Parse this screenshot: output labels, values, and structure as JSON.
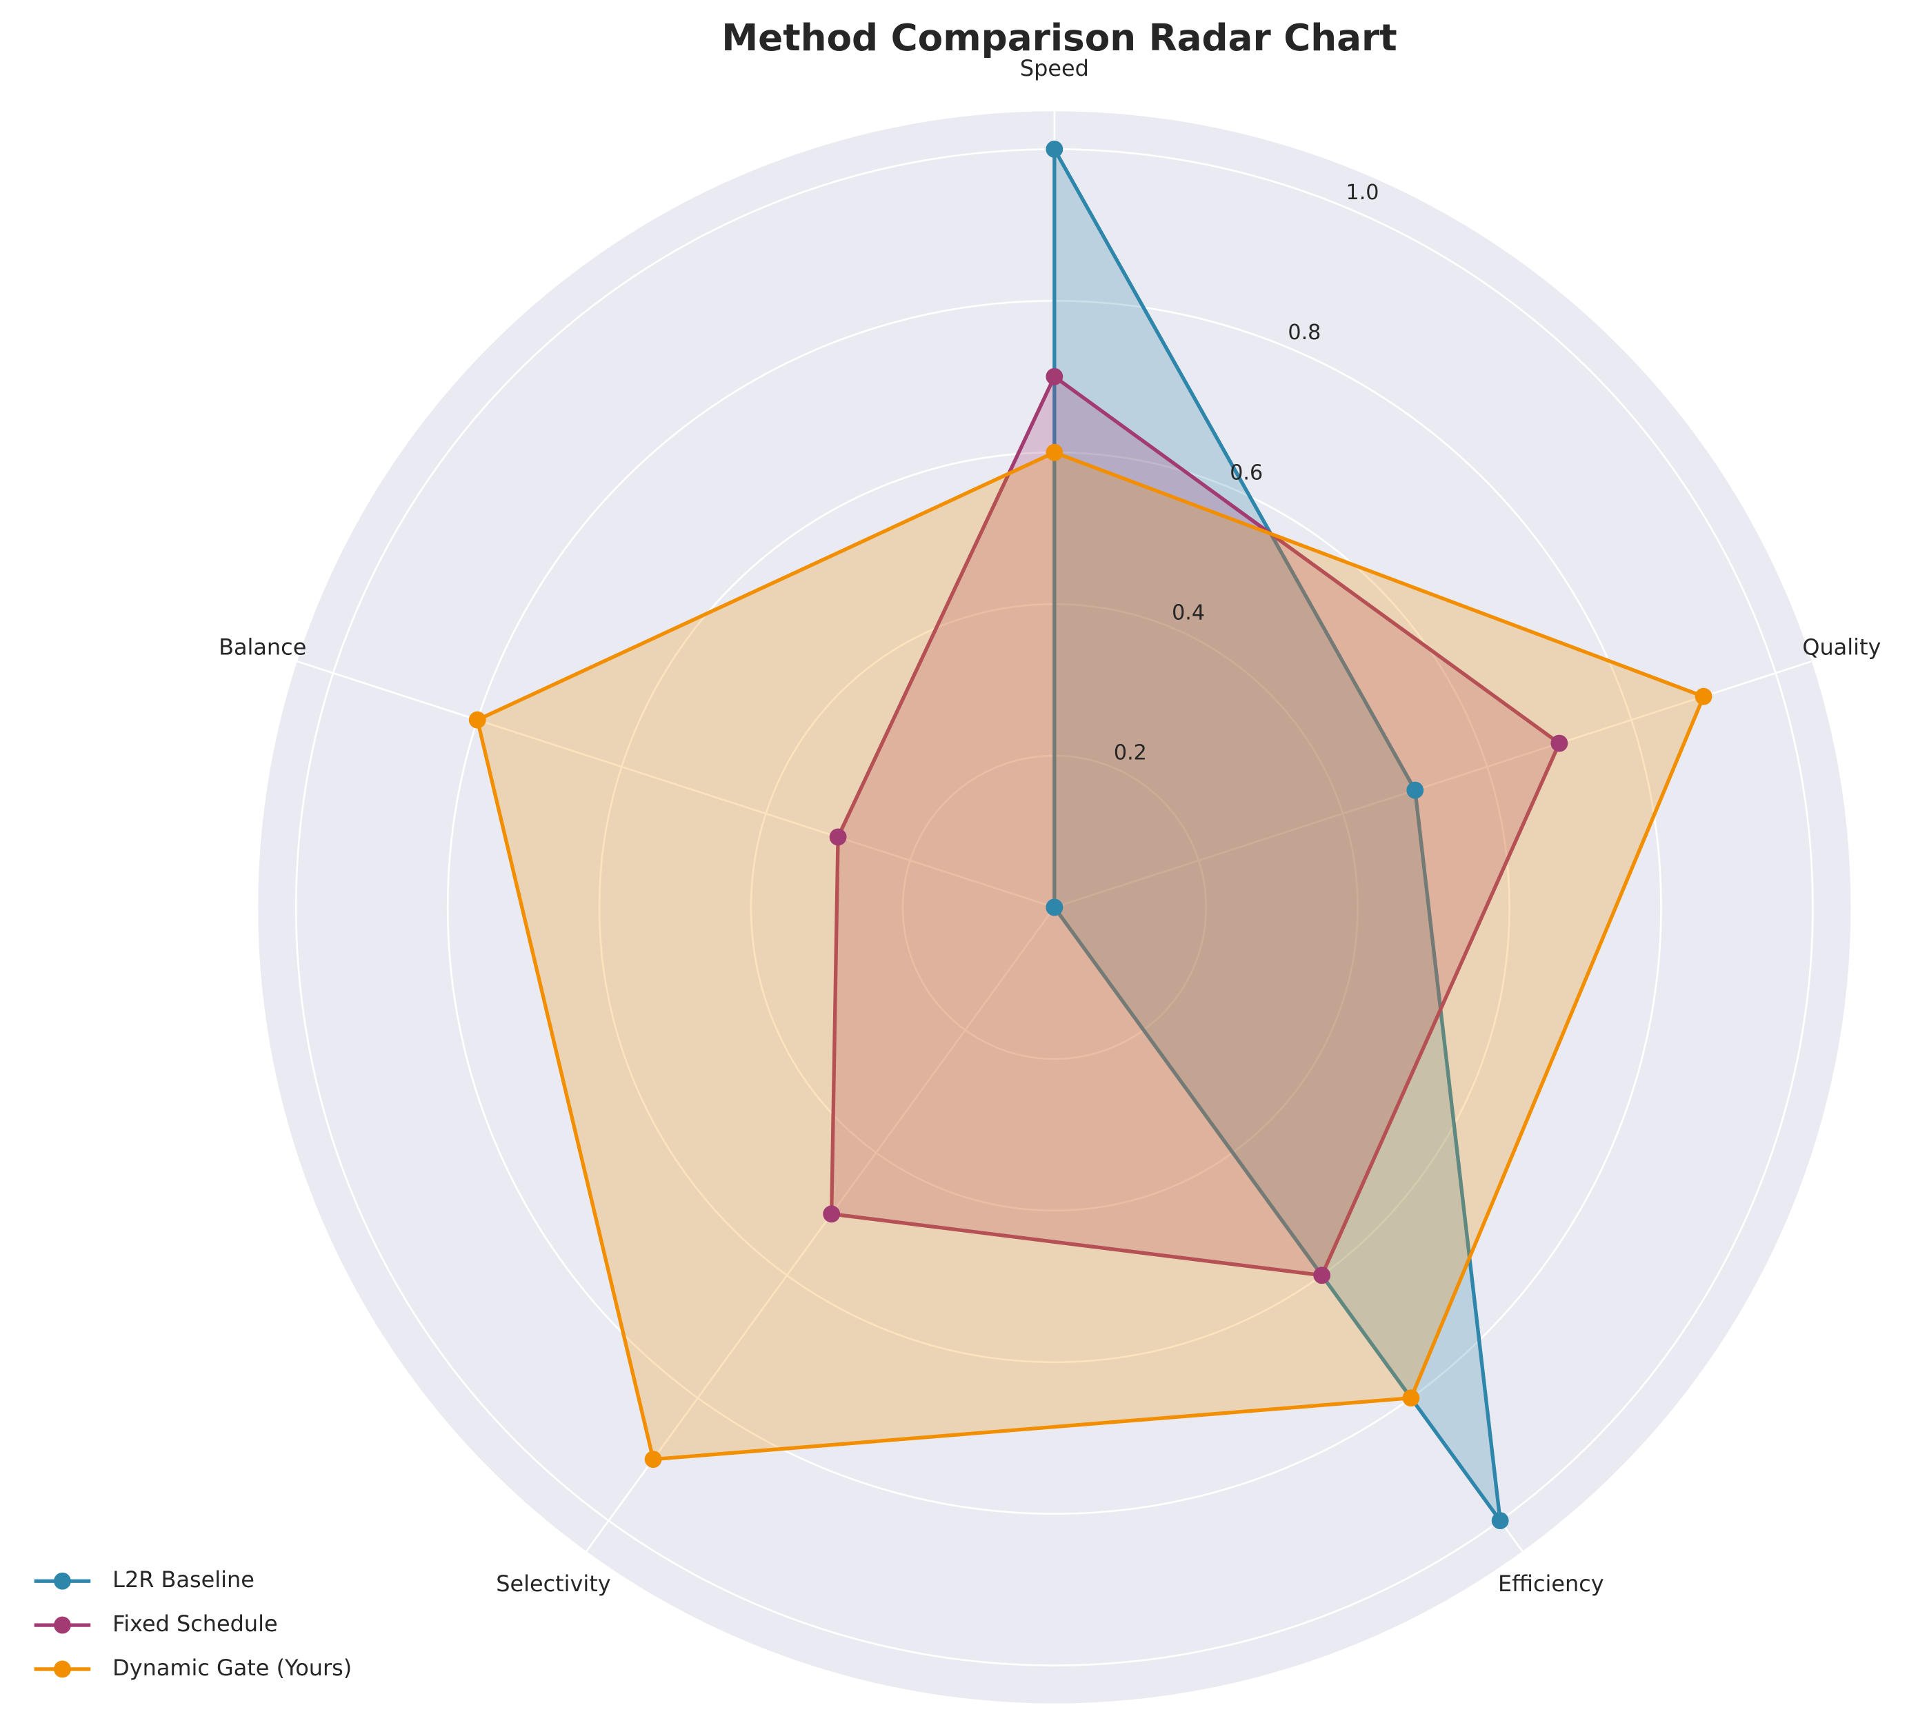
{
  "chart_data": {
    "type": "radar",
    "title": "Method Comparison Radar Chart",
    "categories": [
      "Speed",
      "Quality",
      "Efficiency",
      "Selectivity",
      "Balance"
    ],
    "series": [
      {
        "name": "L2R Baseline",
        "color": "#2e86ab",
        "values": [
          1.0,
          0.5,
          1.0,
          0.0,
          0.0
        ]
      },
      {
        "name": "Fixed Schedule",
        "color": "#a23b72",
        "values": [
          0.7,
          0.7,
          0.6,
          0.5,
          0.3
        ]
      },
      {
        "name": "Dynamic Gate (Yours)",
        "color": "#f18f01",
        "values": [
          0.6,
          0.9,
          0.8,
          0.9,
          0.8
        ]
      }
    ],
    "ylim": [
      0,
      1.05
    ],
    "yticks": [
      0.2,
      0.4,
      0.6,
      0.8,
      {
        "value": 1,
        "label": "1.0"
      }
    ],
    "grid": true,
    "legend": "lower left"
  }
}
